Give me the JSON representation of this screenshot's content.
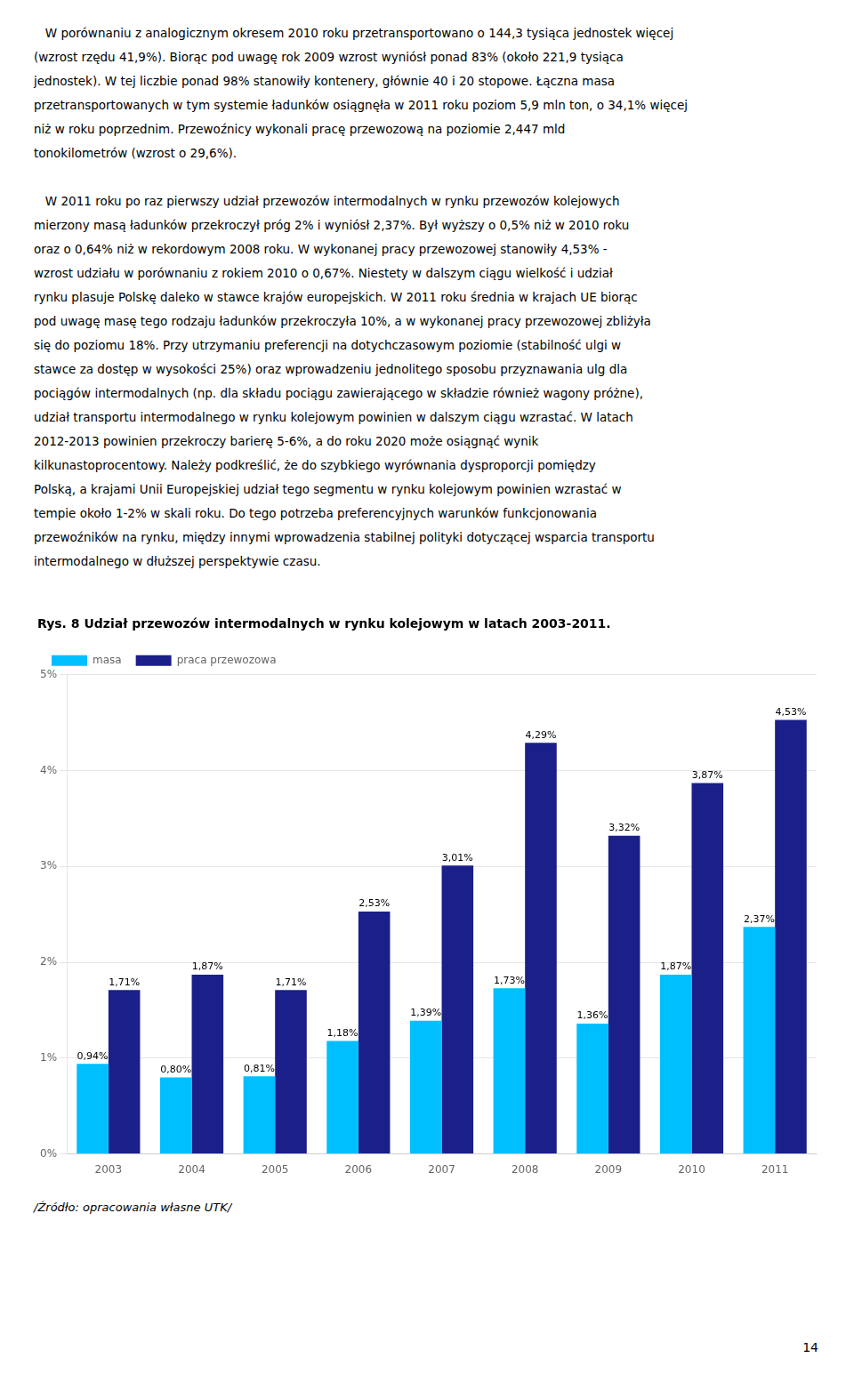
{
  "paragraphs": [
    [
      "   W porównaniu z analogicznym okresem 2010 roku przetransportowano o 144,3 tysiąca jednostek więcej",
      "(wzrost rzędu 41,9%). Biorąc pod uwagę rok 2009 wzrost wyniósł ponad 83% (około 221,9 tysiąca",
      "jednostek). W tej liczbie ponad 98% stanowiły kontenery, głównie 40 i 20 stopowe. Łączna masa",
      "przetransportowanych w tym systemie ładunków osiągnęła w 2011 roku poziom 5,9 mln ton, o 34,1% więcej",
      "niż w roku poprzednim. Przewoźnicy wykonali pracę przewozową na poziomie 2,447 mld",
      "tonokilometrów (wzrost o 29,6%)."
    ],
    [
      "   W 2011 roku po raz pierwszy udział przewozów intermodalnych w rynku przewozów kolejowych",
      "mierzony masą ładunków przekroczył próg 2% i wyniósł 2,37%. Był wyższy o 0,5% niż w 2010 roku",
      "oraz o 0,64% niż w rekordowym 2008 roku. W wykonanej pracy przewozowej stanowiły 4,53% -",
      "wzrost udziału w porównaniu z rokiem 2010 o 0,67%. Niestety w dalszym ciągu wielkość i udział",
      "rynku plasuje Polskę daleko w stawce krajów europejskich. W 2011 roku średnia w krajach UE biorąc",
      "pod uwagę masę tego rodzaju ładunków przekroczyła 10%, a w wykonanej pracy przewozowej zbliżyła",
      "się do poziomu 18%. Przy utrzymaniu preferencji na dotychczasowym poziomie (stabilność ulgi w",
      "stawce za dostęp w wysokości 25%) oraz wprowadzeniu jednolitego sposobu przyznawania ulg dla",
      "pociągów intermodalnych (np. dla składu pociągu zawierającego w składzie również wagony próżne),",
      "udział transportu intermodalnego w rynku kolejowym powinien w dalszym ciągu wzrastać. W latach",
      "2012-2013 powinien przekroczy barierę 5-6%, a do roku 2020 może osiągnąć wynik",
      "kilkunastoprocentowy. Należy podkreślić, że do szybkiego wyrównania dysproporcji pomiędzy",
      "Polską, a krajami Unii Europejskiej udział tego segmentu w rynku kolejowym powinien wzrastać w",
      "tempie około 1-2% w skali roku. Do tego potrzeba preferencyjnych warunków funkcjonowania",
      "przewoźników na rynku, między innymi wprowadzenia stabilnej polityki dotyczącej wsparcia transportu",
      "intermodalnego w dłuższej perspektywie czasu."
    ]
  ],
  "source": "/Źródło: opracowania własne UTK/",
  "page_number": "14",
  "chart_data": {
    "type": "bar",
    "title": "Rys. 8 Udział przewozów intermodalnych w rynku kolejowym w latach 2003-2011.",
    "categories": [
      "2003",
      "2004",
      "2005",
      "2006",
      "2007",
      "2008",
      "2009",
      "2010",
      "2011"
    ],
    "series": [
      {
        "name": "masa",
        "color": "#00BFFF",
        "values": [
          0.94,
          0.8,
          0.81,
          1.18,
          1.39,
          1.73,
          1.36,
          1.87,
          2.37
        ],
        "value_labels": [
          "0,94%",
          "0,80%",
          "0,81%",
          "1,18%",
          "1,39%",
          "1,73%",
          "1,36%",
          "1,87%",
          "2,37%"
        ]
      },
      {
        "name": "praca przewozowa",
        "color": "#1B1F8A",
        "values": [
          1.71,
          1.87,
          1.71,
          2.53,
          3.01,
          4.29,
          3.32,
          3.87,
          4.53
        ],
        "value_labels": [
          "1,71%",
          "1,87%",
          "1,71%",
          "2,53%",
          "3,01%",
          "4,29%",
          "3,32%",
          "3,87%",
          "4,53%"
        ]
      }
    ],
    "ylim": [
      0,
      5
    ],
    "yticks": [
      {
        "value": 0,
        "label": "0%"
      },
      {
        "value": 1,
        "label": "1%"
      },
      {
        "value": 2,
        "label": "2%"
      },
      {
        "value": 3,
        "label": "3%"
      },
      {
        "value": 4,
        "label": "4%"
      },
      {
        "value": 5,
        "label": "5%"
      }
    ],
    "grid": true,
    "legend": "upper left",
    "data_labels": true
  }
}
